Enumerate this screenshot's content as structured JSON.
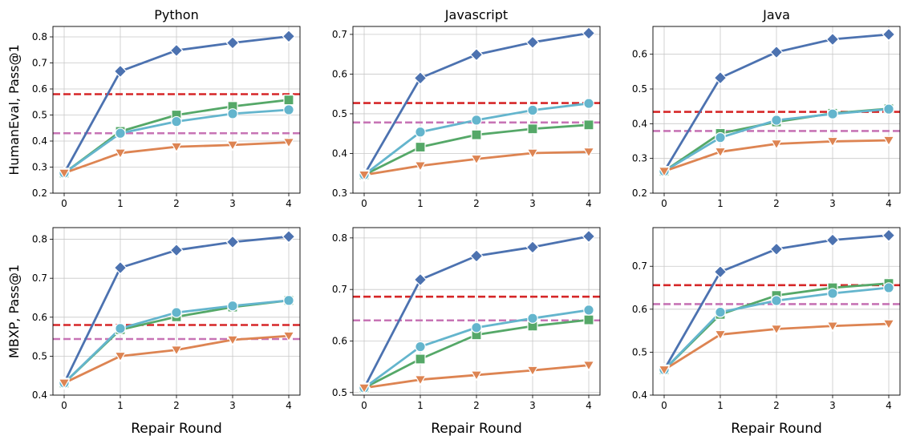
{
  "chart_data": {
    "type": "line",
    "row_labels": [
      "HumanEval, Pass@1",
      "MBXP, Pass@1"
    ],
    "x_label": "Repair Round",
    "x": [
      0,
      1,
      2,
      3,
      4
    ],
    "series_styles": [
      {
        "color": "#4C72B0",
        "marker": "diamond"
      },
      {
        "color": "#55A868",
        "marker": "square"
      },
      {
        "color": "#64B5CD",
        "marker": "circle"
      },
      {
        "color": "#DD8452",
        "marker": "triangle-down"
      }
    ],
    "reference_line_styles": [
      {
        "color": "#D62728",
        "dash": "dashed"
      },
      {
        "color": "#C774B5",
        "dash": "dashed"
      }
    ],
    "panels": [
      {
        "row": 0,
        "col": 0,
        "title": "Python",
        "ylim": [
          0.2,
          0.84
        ],
        "yticks": [
          "0.2",
          "0.3",
          "0.4",
          "0.5",
          "0.6",
          "0.7",
          "0.8"
        ],
        "series": [
          {
            "values": [
              0.277,
              0.668,
              0.748,
              0.777,
              0.802
            ]
          },
          {
            "values": [
              0.277,
              0.437,
              0.5,
              0.533,
              0.558
            ]
          },
          {
            "values": [
              0.277,
              0.43,
              0.475,
              0.505,
              0.52
            ]
          },
          {
            "values": [
              0.277,
              0.354,
              0.378,
              0.385,
              0.395
            ]
          }
        ],
        "reference_lines": [
          0.58,
          0.43
        ]
      },
      {
        "row": 0,
        "col": 1,
        "title": "Javascript",
        "ylim": [
          0.3,
          0.72
        ],
        "yticks": [
          "0.3",
          "0.4",
          "0.5",
          "0.6",
          "0.7"
        ],
        "series": [
          {
            "values": [
              0.346,
              0.59,
              0.649,
              0.68,
              0.703
            ]
          },
          {
            "values": [
              0.346,
              0.416,
              0.447,
              0.462,
              0.472
            ]
          },
          {
            "values": [
              0.346,
              0.454,
              0.484,
              0.509,
              0.526
            ]
          },
          {
            "values": [
              0.346,
              0.369,
              0.386,
              0.401,
              0.404
            ]
          }
        ],
        "reference_lines": [
          0.527,
          0.478
        ]
      },
      {
        "row": 0,
        "col": 2,
        "title": "Java",
        "ylim": [
          0.2,
          0.68
        ],
        "yticks": [
          "0.2",
          "0.3",
          "0.4",
          "0.5",
          "0.6"
        ],
        "series": [
          {
            "values": [
              0.263,
              0.532,
              0.606,
              0.643,
              0.657
            ]
          },
          {
            "values": [
              0.263,
              0.372,
              0.405,
              0.43,
              0.443
            ]
          },
          {
            "values": [
              0.263,
              0.36,
              0.41,
              0.428,
              0.442
            ]
          },
          {
            "values": [
              0.263,
              0.319,
              0.342,
              0.349,
              0.352
            ]
          }
        ],
        "reference_lines": [
          0.434,
          0.379
        ]
      },
      {
        "row": 1,
        "col": 0,
        "title": "",
        "ylim": [
          0.4,
          0.83
        ],
        "yticks": [
          "0.4",
          "0.5",
          "0.6",
          "0.7",
          "0.8"
        ],
        "series": [
          {
            "values": [
              0.431,
              0.727,
              0.772,
              0.793,
              0.807
            ]
          },
          {
            "values": [
              0.431,
              0.568,
              0.601,
              0.626,
              0.643
            ]
          },
          {
            "values": [
              0.431,
              0.571,
              0.612,
              0.629,
              0.643
            ]
          },
          {
            "values": [
              0.431,
              0.5,
              0.516,
              0.542,
              0.552
            ]
          }
        ],
        "reference_lines": [
          0.58,
          0.544
        ]
      },
      {
        "row": 1,
        "col": 1,
        "title": "",
        "ylim": [
          0.495,
          0.82
        ],
        "yticks": [
          "0.5",
          "0.6",
          "0.7",
          "0.8"
        ],
        "series": [
          {
            "values": [
              0.509,
              0.719,
              0.765,
              0.782,
              0.803
            ]
          },
          {
            "values": [
              0.509,
              0.565,
              0.612,
              0.629,
              0.641
            ]
          },
          {
            "values": [
              0.509,
              0.589,
              0.626,
              0.644,
              0.66
            ]
          },
          {
            "values": [
              0.509,
              0.525,
              0.534,
              0.543,
              0.553
            ]
          }
        ],
        "reference_lines": [
          0.686,
          0.64
        ]
      },
      {
        "row": 1,
        "col": 2,
        "title": "",
        "ylim": [
          0.4,
          0.79
        ],
        "yticks": [
          "0.4",
          "0.5",
          "0.6",
          "0.7"
        ],
        "series": [
          {
            "values": [
              0.459,
              0.687,
              0.74,
              0.761,
              0.772
            ]
          },
          {
            "values": [
              0.459,
              0.588,
              0.632,
              0.65,
              0.66
            ]
          },
          {
            "values": [
              0.459,
              0.593,
              0.62,
              0.637,
              0.65
            ]
          },
          {
            "values": [
              0.459,
              0.541,
              0.554,
              0.561,
              0.566
            ]
          }
        ],
        "reference_lines": [
          0.656,
          0.612
        ]
      }
    ]
  }
}
